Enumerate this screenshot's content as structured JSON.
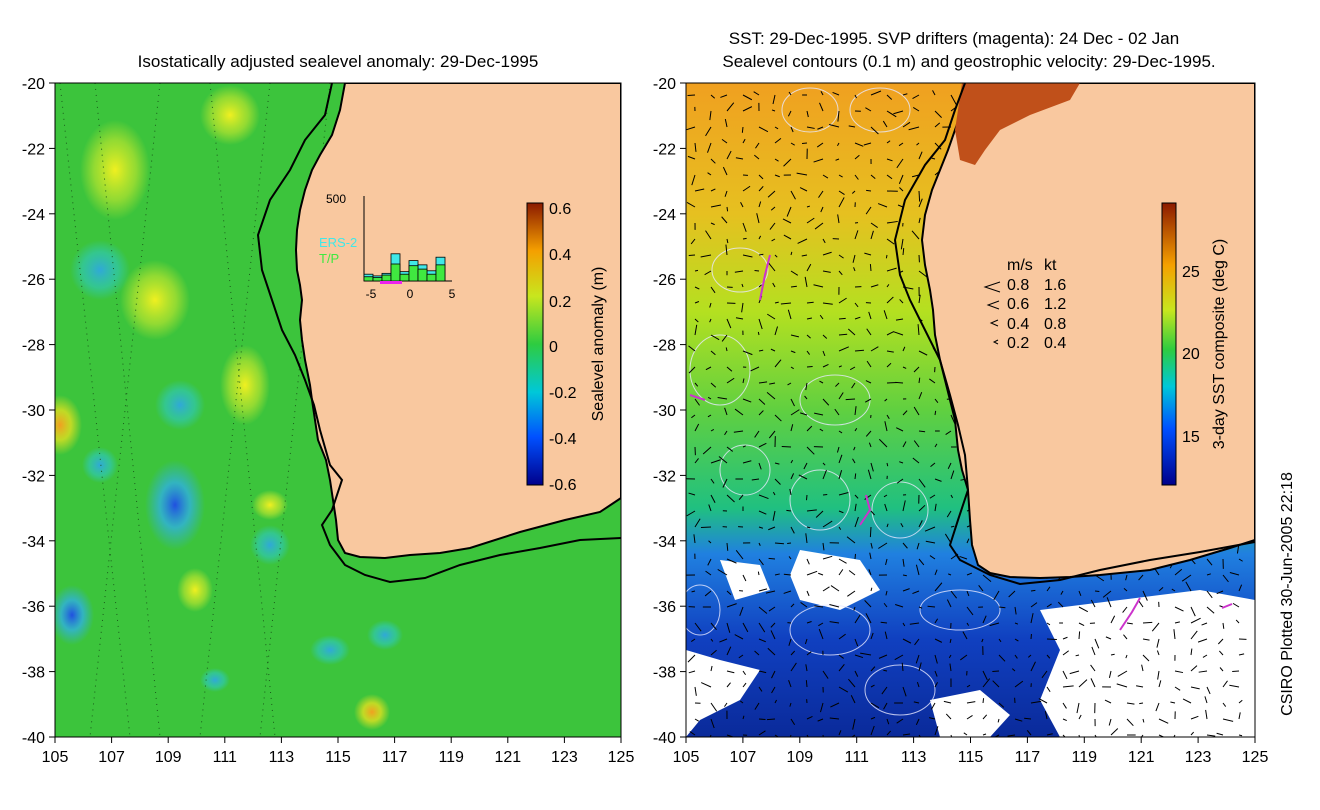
{
  "left_panel": {
    "title": "Isostatically adjusted sealevel anomaly: 29-Dec-1995",
    "x_ticks": [
      "105",
      "107",
      "109",
      "111",
      "113",
      "115",
      "117",
      "119",
      "121",
      "123",
      "125"
    ],
    "y_ticks": [
      "-20",
      "-22",
      "-24",
      "-26",
      "-28",
      "-30",
      "-32",
      "-34",
      "-36",
      "-38",
      "-40"
    ],
    "colorbar": {
      "label": "Sealevel anomaly (m)",
      "ticks": [
        "0.6",
        "0.4",
        "0.2",
        "0",
        "-0.2",
        "-0.4",
        "-0.6"
      ],
      "range": [
        -0.6,
        0.6
      ]
    },
    "inset": {
      "y_max_label": "500",
      "series_labels": [
        "ERS-2",
        "T/P"
      ],
      "x_ticks": [
        "-5",
        "0",
        "5"
      ],
      "ers2_bars": [
        40,
        30,
        45,
        160,
        55,
        120,
        95,
        60,
        140
      ],
      "tp_bars": [
        25,
        20,
        35,
        100,
        40,
        90,
        70,
        40,
        95
      ]
    }
  },
  "right_panel": {
    "title_line1": "SST: 29-Dec-1995. SVP drifters (magenta): 24 Dec - 02 Jan",
    "title_line2": "Sealevel contours (0.1 m) and geostrophic velocity: 29-Dec-1995.",
    "x_ticks": [
      "105",
      "107",
      "109",
      "111",
      "113",
      "115",
      "117",
      "119",
      "121",
      "123",
      "125"
    ],
    "y_ticks": [
      "-20",
      "-22",
      "-24",
      "-26",
      "-28",
      "-30",
      "-32",
      "-34",
      "-36",
      "-38",
      "-40"
    ],
    "colorbar": {
      "label": "3-day SST composite (deg C)",
      "ticks": [
        "25",
        "20",
        "15"
      ],
      "range": [
        12,
        29
      ]
    },
    "velocity_legend": {
      "header_ms": "m/s",
      "header_kt": "kt",
      "rows": [
        {
          "ms": "0.8",
          "kt": "1.6"
        },
        {
          "ms": "0.6",
          "kt": "1.2"
        },
        {
          "ms": "0.4",
          "kt": "0.8"
        },
        {
          "ms": "0.2",
          "kt": "0.4"
        }
      ]
    }
  },
  "credit": "CSIRO Plotted 30-Jun-2005 22:18",
  "colors": {
    "land": "#f9c89f",
    "ocean_green": "#3cc43c",
    "coastline": "#000000",
    "drifters": "#cc33cc"
  }
}
